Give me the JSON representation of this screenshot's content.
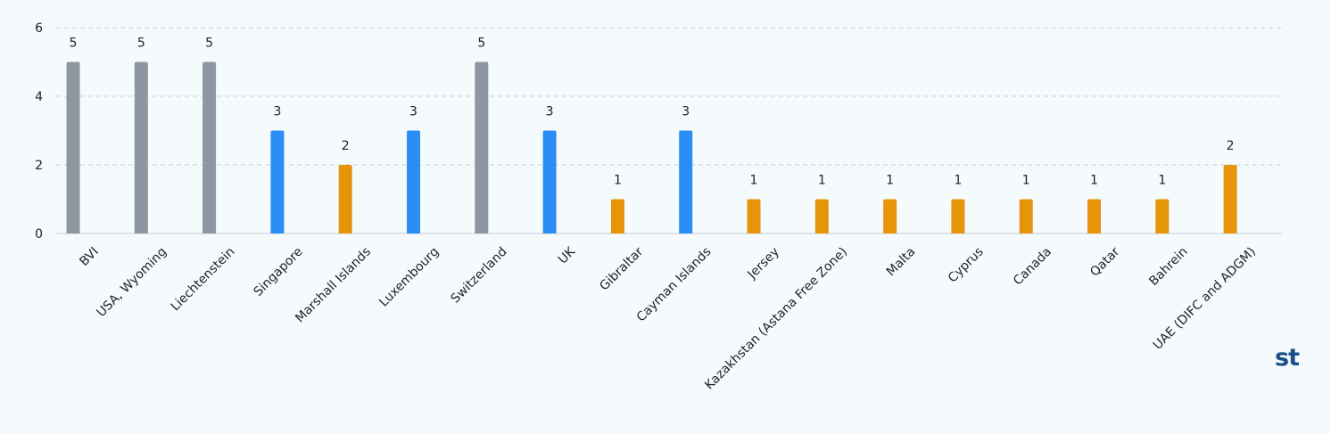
{
  "chart_data": {
    "type": "bar",
    "categories": [
      "BVI",
      "USA, Wyoming",
      "Liechtenstein",
      "Singapore",
      "Marshall Islands",
      "Luxembourg",
      "Switzerland",
      "UK",
      "Gibraltar",
      "Cayman Islands",
      "Jersey",
      "Kazakhstan (Astana Free Zone)",
      "Malta",
      "Cyprus",
      "Canada",
      "Qatar",
      "Bahrein",
      "UAE (DIFC and ADGM)"
    ],
    "values": [
      5,
      5,
      5,
      3,
      2,
      3,
      5,
      3,
      1,
      3,
      1,
      1,
      1,
      1,
      1,
      1,
      1,
      2
    ],
    "ylim": [
      0,
      6
    ],
    "yticks": [
      0,
      2,
      4,
      6
    ],
    "grid": true,
    "title": "",
    "xlabel": "",
    "ylabel": "",
    "colors": {
      "5": "#8c979f",
      "3": "#2b8ef5",
      "2": "#e6950a",
      "1": "#e6950a"
    },
    "grid_color": "#c9cfd6",
    "axis_color": "#c9cfd6",
    "text_color": "#222222"
  },
  "logo": {
    "text": "st",
    "color": "#1b4f86"
  }
}
